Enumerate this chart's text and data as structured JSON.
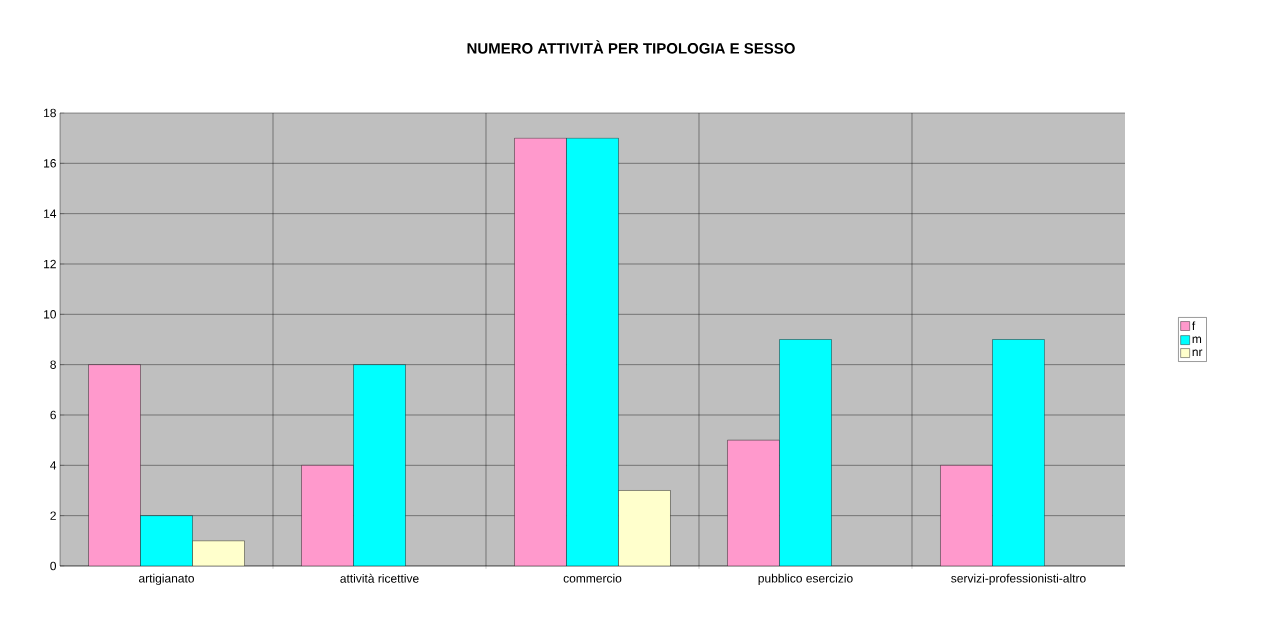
{
  "chart_data": {
    "type": "bar",
    "title": "NUMERO ATTIVITÀ PER TIPOLOGIA E SESSO",
    "categories": [
      "artigianato",
      "attività ricettive",
      "commercio",
      "pubblico esercizio",
      "servizi-professionisti-altro"
    ],
    "series": [
      {
        "name": "f",
        "color": "#ff99cc",
        "values": [
          8,
          4,
          17,
          5,
          4
        ]
      },
      {
        "name": "m",
        "color": "#00ffff",
        "values": [
          2,
          8,
          17,
          9,
          9
        ]
      },
      {
        "name": "nr",
        "color": "#ffffcc",
        "values": [
          1,
          null,
          3,
          null,
          null
        ]
      }
    ],
    "ylim": [
      0,
      18
    ],
    "yticks": [
      0,
      2,
      4,
      6,
      8,
      10,
      12,
      14,
      16,
      18
    ],
    "grid": true,
    "legend": "right"
  }
}
